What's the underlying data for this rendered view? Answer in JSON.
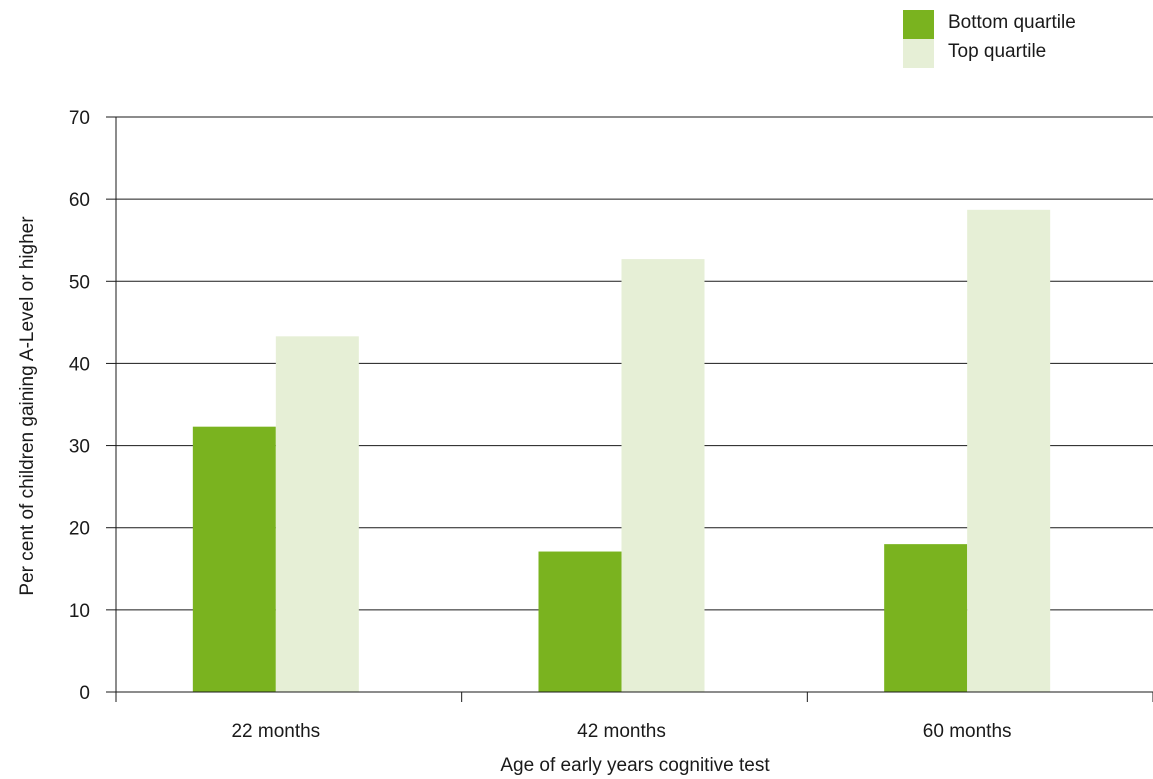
{
  "chart_data": {
    "type": "bar",
    "categories": [
      "22 months",
      "42 months",
      "60 months"
    ],
    "series": [
      {
        "name": "Bottom quartile",
        "values": [
          32.3,
          17.1,
          18.0
        ],
        "color": "#7ab31f"
      },
      {
        "name": "Top quartile",
        "values": [
          43.3,
          52.7,
          58.7
        ],
        "color": "#e6efd6"
      }
    ],
    "title": "",
    "xlabel": "Age of early years cognitive test",
    "ylabel": "Per cent of children gaining A-Level or higher",
    "ylim": [
      0,
      70
    ],
    "yticks": [
      "0",
      "10",
      "20",
      "30",
      "40",
      "50",
      "60",
      "70"
    ],
    "grid": true,
    "legend_position": "top-right"
  }
}
